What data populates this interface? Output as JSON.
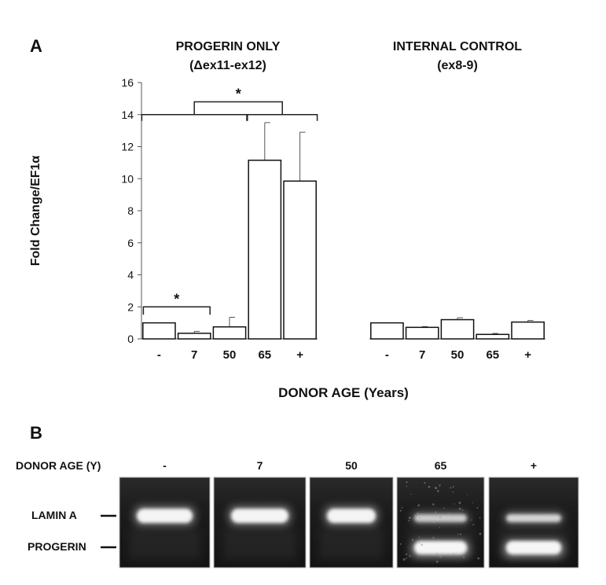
{
  "panels": {
    "a_label": "A",
    "b_label": "B"
  },
  "chart_data": [
    {
      "type": "bar",
      "title": "PROGERIN ONLY",
      "subtitle": "(Δex11-ex12)",
      "ylabel": "Fold Change/EF1α",
      "xlabel": "DONOR AGE (Years)",
      "ylim": [
        0,
        16
      ],
      "yticks": [
        0,
        2,
        4,
        6,
        8,
        10,
        12,
        14,
        16
      ],
      "categories": [
        "-",
        "7",
        "50",
        "65",
        "+"
      ],
      "values": [
        1.0,
        0.35,
        0.75,
        11.15,
        9.85
      ],
      "errors": [
        0,
        0.12,
        0.6,
        2.35,
        3.05
      ],
      "grid": false,
      "significance": [
        {
          "label": "*",
          "groups": [
            [
              "-"
            ],
            [
              "7"
            ]
          ]
        },
        {
          "label": "*",
          "groups": [
            [
              "-",
              "7",
              "50"
            ],
            [
              "65",
              "+"
            ]
          ]
        }
      ]
    },
    {
      "type": "bar",
      "title": "INTERNAL CONTROL",
      "subtitle": "(ex8-9)",
      "ylim": [
        0,
        16
      ],
      "categories": [
        "-",
        "7",
        "50",
        "65",
        "+"
      ],
      "values": [
        1.0,
        0.72,
        1.2,
        0.28,
        1.05
      ],
      "errors": [
        0,
        0.05,
        0.12,
        0.06,
        0.1
      ],
      "grid": false
    }
  ],
  "gel": {
    "row_label": "DONOR AGE (Y)",
    "lanes": [
      "-",
      "7",
      "50",
      "65",
      "+"
    ],
    "band_labels": {
      "lamin": "LAMIN A",
      "progerin": "PROGERIN"
    },
    "lamin_intensity": [
      1.0,
      1.0,
      1.0,
      0.75,
      0.8
    ],
    "progerin_intensity": [
      0,
      0,
      0,
      1.0,
      1.0
    ]
  }
}
